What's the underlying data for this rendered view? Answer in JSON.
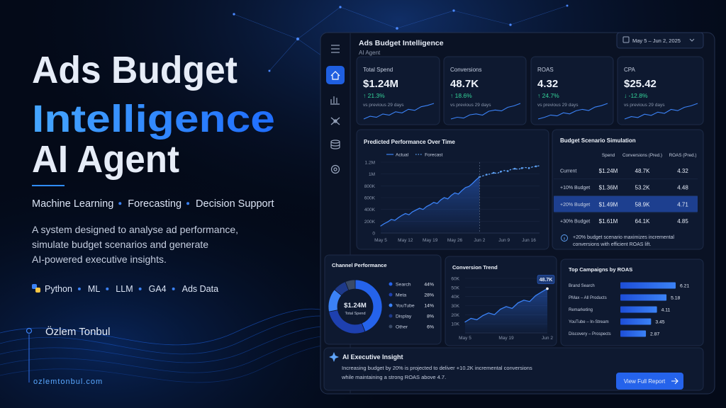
{
  "hero": {
    "title": [
      "Ads Budget",
      "Intelligence",
      "AI Agent"
    ],
    "tags": [
      "Machine Learning",
      "Forecasting",
      "Decision Support"
    ],
    "description": [
      "A system designed to analyse ad performance,",
      "simulate budget scenarios and generate",
      "AI-powered executive insights."
    ],
    "tech": [
      "Python",
      "ML",
      "LLM",
      "GA4",
      "Ads Data"
    ],
    "author": "Özlem Tonbul",
    "website": "ozlemtonbul.com"
  },
  "dashboard": {
    "title": "Ads Budget Intelligence",
    "subtitle": "AI Agent",
    "date_range": "May 5 – Jun 2, 2025",
    "kpis": [
      {
        "label": "Total Spend",
        "value": "$1.24M",
        "change": "↑ 21.3%",
        "note": "vs previous 29 days",
        "spark": [
          3,
          4,
          3.6,
          4.8,
          4.4,
          5.6,
          5.2,
          6.5,
          6.1,
          7.4,
          7.9,
          8.6
        ]
      },
      {
        "label": "Conversions",
        "value": "48.7K",
        "change": "↑ 18.6%",
        "note": "vs previous 29 days",
        "spark": [
          3.2,
          3.8,
          3.5,
          4.6,
          4.9,
          4.5,
          5.8,
          6.2,
          5.9,
          7.1,
          7.6,
          8.4
        ]
      },
      {
        "label": "ROAS",
        "value": "4.32",
        "change": "↑ 24.7%",
        "note": "vs previous 29 days",
        "spark": [
          3,
          3.6,
          4.4,
          4.1,
          5.2,
          4.8,
          5.9,
          6.4,
          6,
          7.2,
          7.7,
          8.5
        ]
      },
      {
        "label": "CPA",
        "value": "$25.42",
        "change": "↓ -12.8%",
        "note": "vs previous 29 days",
        "spark": [
          3.4,
          4.2,
          3.9,
          5,
          4.6,
          5.7,
          5.3,
          6.6,
          6.2,
          7.3,
          7.8,
          8.6
        ]
      }
    ],
    "scenario": {
      "title": "Budget Scenario Simulation",
      "columns": [
        "Spend",
        "Conversions (Pred.)",
        "ROAS (Pred.)"
      ],
      "rows": [
        [
          "Current",
          "$1.24M",
          "48.7K",
          "4.32"
        ],
        [
          "+10% Budget",
          "$1.36M",
          "53.2K",
          "4.48"
        ],
        [
          "+20% Budget",
          "$1.49M",
          "58.9K",
          "4.71"
        ],
        [
          "+30% Budget",
          "$1.61M",
          "64.1K",
          "4.85"
        ]
      ],
      "highlight_row": 2,
      "note": [
        "+20% budget scenario maximizes incremental",
        "conversions with efficient ROAS lift."
      ]
    },
    "insight": {
      "title": "AI Executive Insight",
      "text": [
        "Increasing budget by 20% is projected to deliver +10.2K incremental conversions",
        "while maintaining a strong ROAS above 4.7."
      ],
      "button": "View Full Report"
    }
  },
  "chart_data": [
    {
      "type": "line",
      "title": "Predicted Performance Over Time",
      "categories": [
        "May 5",
        null,
        null,
        null,
        null,
        null,
        null,
        "May 12",
        null,
        null,
        null,
        null,
        null,
        null,
        "May 19",
        null,
        null,
        null,
        null,
        null,
        null,
        "May 26",
        null,
        null,
        null,
        null,
        null,
        null,
        "Jun 2",
        null,
        null,
        null,
        null,
        null,
        null,
        "Jun 9",
        null,
        null,
        null,
        null,
        null,
        null,
        "Jun 16",
        null,
        null,
        null
      ],
      "series": [
        {
          "name": "Actual",
          "color": "#3b82f6",
          "style": "solid",
          "values": [
            120000,
            160000,
            190000,
            230000,
            215000,
            260000,
            300000,
            330000,
            310000,
            360000,
            390000,
            420000,
            400000,
            450000,
            480000,
            520000,
            500000,
            560000,
            600000,
            580000,
            640000,
            680000,
            660000,
            720000,
            770000,
            790000,
            840000,
            900000,
            950000,
            null,
            null,
            null,
            null,
            null,
            null,
            null,
            null,
            null,
            null,
            null,
            null,
            null,
            null,
            null,
            null,
            null
          ]
        },
        {
          "name": "Forecast",
          "color": "#60a5fa",
          "style": "dotted",
          "values": [
            null,
            null,
            null,
            null,
            null,
            null,
            null,
            null,
            null,
            null,
            null,
            null,
            null,
            null,
            null,
            null,
            null,
            null,
            null,
            null,
            null,
            null,
            null,
            null,
            null,
            null,
            null,
            null,
            950000,
            970000,
            990000,
            1000000,
            1020000,
            1010000,
            1040000,
            1060000,
            1050000,
            1080000,
            1090000,
            1080000,
            1100000,
            1110000,
            1100000,
            1120000,
            1130000,
            1140000
          ]
        }
      ],
      "ylim": [
        0,
        1200000
      ],
      "yticks": [
        0,
        {
          "value": 200000,
          "label": "200K"
        },
        {
          "value": 400000,
          "label": "400K"
        },
        {
          "value": 600000,
          "label": "600K"
        },
        {
          "value": 800000,
          "label": "800K"
        },
        {
          "value": 1000000,
          "label": "1M"
        },
        {
          "value": 1200000,
          "label": "1.2M"
        }
      ],
      "grid": true
    },
    {
      "type": "pie",
      "title": "Channel Performance",
      "center_value": "$1.24M",
      "center_label": "Total Spend",
      "categories": [
        "Search",
        "Meta",
        "YouTube",
        "Display",
        "Other"
      ],
      "values": [
        44,
        28,
        14,
        8,
        6
      ],
      "value_labels": [
        "44%",
        "28%",
        "14%",
        "8%",
        "6%"
      ],
      "colors": [
        "#2563eb",
        "#1e40af",
        "#3b82f6",
        "#1e3a8a",
        "#3a4a66"
      ]
    },
    {
      "type": "line",
      "title": "Conversion Trend",
      "categories": [
        "May 5",
        null,
        null,
        null,
        null,
        null,
        null,
        "May 19",
        null,
        null,
        null,
        null,
        null,
        null,
        "Jun 2"
      ],
      "values": [
        12000,
        16000,
        14500,
        19000,
        22000,
        20000,
        26000,
        29000,
        27000,
        33000,
        36000,
        34500,
        41000,
        45000,
        48700
      ],
      "value_labels": [
        null,
        null,
        null,
        null,
        null,
        null,
        null,
        null,
        null,
        null,
        null,
        null,
        null,
        null,
        "48.7K"
      ],
      "color": "#3b82f6",
      "ylim": [
        0,
        60000
      ],
      "yticks": [
        {
          "value": 10000,
          "label": "10K"
        },
        {
          "value": 20000,
          "label": "20K"
        },
        {
          "value": 30000,
          "label": "30K"
        },
        {
          "value": 40000,
          "label": "40K"
        },
        {
          "value": 50000,
          "label": "50K"
        },
        {
          "value": 60000,
          "label": "60K"
        }
      ],
      "grid": true
    },
    {
      "type": "bar",
      "orientation": "horizontal",
      "title": "Top Campaigns by ROAS",
      "categories": [
        "Brand Search",
        "PMax – All Products",
        "Remarketing",
        "YouTube – In-Stream",
        "Discovery – Prospects"
      ],
      "values": [
        6.21,
        5.18,
        4.11,
        3.45,
        2.87
      ],
      "color": "#2563eb"
    }
  ]
}
